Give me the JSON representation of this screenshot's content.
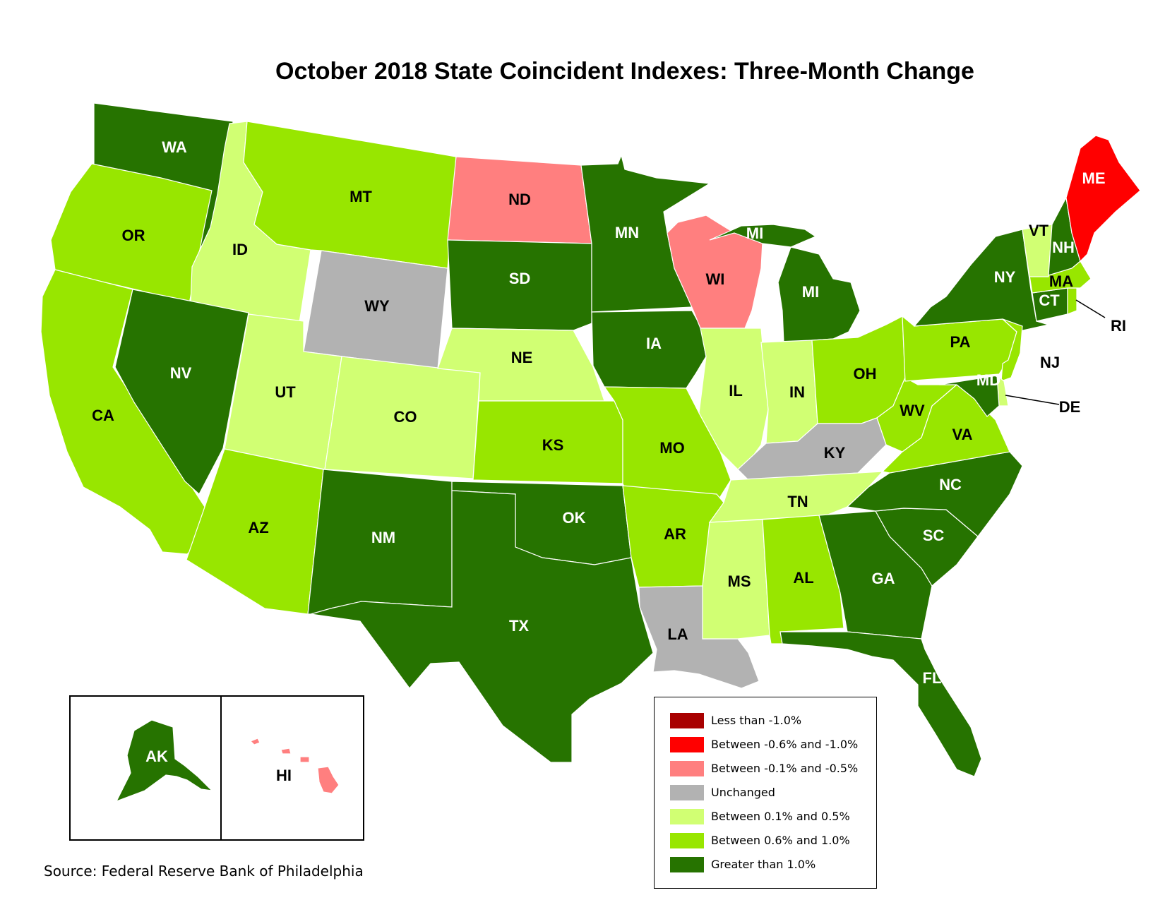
{
  "title": "October 2018 State Coincident Indexes: Three-Month Change",
  "source": "Source: Federal Reserve Bank of Philadelphia",
  "colors": {
    "less_than_neg1": "#a80000",
    "neg06_to_neg1": "#ff0000",
    "neg01_to_neg05": "#ff7f7f",
    "unchanged": "#b2b2b2",
    "pos01_to_05": "#d1ff73",
    "pos06_to_1": "#98e600",
    "greater_than_1": "#267300"
  },
  "legend": [
    {
      "label": "Less than -1.0%",
      "category": "less_than_neg1"
    },
    {
      "label": "Between -0.6% and -1.0%",
      "category": "neg06_to_neg1"
    },
    {
      "label": "Between -0.1% and -0.5%",
      "category": "neg01_to_neg05"
    },
    {
      "label": "Unchanged",
      "category": "unchanged"
    },
    {
      "label": "Between 0.1% and 0.5%",
      "category": "pos01_to_05"
    },
    {
      "label": "Between 0.6% and 1.0%",
      "category": "pos06_to_1"
    },
    {
      "label": "Greater than 1.0%",
      "category": "greater_than_1"
    }
  ],
  "states": [
    {
      "abbr": "WA",
      "category": "greater_than_1"
    },
    {
      "abbr": "OR",
      "category": "pos06_to_1"
    },
    {
      "abbr": "CA",
      "category": "pos06_to_1"
    },
    {
      "abbr": "ID",
      "category": "pos01_to_05"
    },
    {
      "abbr": "NV",
      "category": "greater_than_1"
    },
    {
      "abbr": "MT",
      "category": "pos06_to_1"
    },
    {
      "abbr": "WY",
      "category": "unchanged"
    },
    {
      "abbr": "UT",
      "category": "pos01_to_05"
    },
    {
      "abbr": "CO",
      "category": "pos01_to_05"
    },
    {
      "abbr": "AZ",
      "category": "pos06_to_1"
    },
    {
      "abbr": "NM",
      "category": "greater_than_1"
    },
    {
      "abbr": "ND",
      "category": "neg01_to_neg05"
    },
    {
      "abbr": "SD",
      "category": "greater_than_1"
    },
    {
      "abbr": "NE",
      "category": "pos01_to_05"
    },
    {
      "abbr": "KS",
      "category": "pos06_to_1"
    },
    {
      "abbr": "OK",
      "category": "greater_than_1"
    },
    {
      "abbr": "TX",
      "category": "greater_than_1"
    },
    {
      "abbr": "MN",
      "category": "greater_than_1"
    },
    {
      "abbr": "IA",
      "category": "greater_than_1"
    },
    {
      "abbr": "MO",
      "category": "pos06_to_1"
    },
    {
      "abbr": "AR",
      "category": "pos06_to_1"
    },
    {
      "abbr": "LA",
      "category": "unchanged"
    },
    {
      "abbr": "WI",
      "category": "neg01_to_neg05"
    },
    {
      "abbr": "IL",
      "category": "pos01_to_05"
    },
    {
      "abbr": "MI",
      "category": "greater_than_1"
    },
    {
      "abbr": "IN",
      "category": "pos01_to_05"
    },
    {
      "abbr": "OH",
      "category": "pos06_to_1"
    },
    {
      "abbr": "KY",
      "category": "unchanged"
    },
    {
      "abbr": "TN",
      "category": "pos01_to_05"
    },
    {
      "abbr": "MS",
      "category": "pos01_to_05"
    },
    {
      "abbr": "AL",
      "category": "pos06_to_1"
    },
    {
      "abbr": "GA",
      "category": "greater_than_1"
    },
    {
      "abbr": "FL",
      "category": "greater_than_1"
    },
    {
      "abbr": "SC",
      "category": "greater_than_1"
    },
    {
      "abbr": "NC",
      "category": "greater_than_1"
    },
    {
      "abbr": "VA",
      "category": "pos06_to_1"
    },
    {
      "abbr": "WV",
      "category": "pos06_to_1"
    },
    {
      "abbr": "PA",
      "category": "pos06_to_1"
    },
    {
      "abbr": "NY",
      "category": "greater_than_1"
    },
    {
      "abbr": "NJ",
      "category": "pos06_to_1"
    },
    {
      "abbr": "DE",
      "category": "pos01_to_05"
    },
    {
      "abbr": "MD",
      "category": "greater_than_1"
    },
    {
      "abbr": "CT",
      "category": "greater_than_1"
    },
    {
      "abbr": "RI",
      "category": "pos06_to_1"
    },
    {
      "abbr": "MA",
      "category": "pos06_to_1"
    },
    {
      "abbr": "VT",
      "category": "pos01_to_05"
    },
    {
      "abbr": "NH",
      "category": "greater_than_1"
    },
    {
      "abbr": "ME",
      "category": "neg06_to_neg1"
    },
    {
      "abbr": "AK",
      "category": "greater_than_1"
    },
    {
      "abbr": "HI",
      "category": "neg01_to_neg05"
    }
  ],
  "labels": {
    "WA": "WA",
    "OR": "OR",
    "CA": "CA",
    "ID": "ID",
    "NV": "NV",
    "MT": "MT",
    "WY": "WY",
    "UT": "UT",
    "CO": "CO",
    "AZ": "AZ",
    "NM": "NM",
    "ND": "ND",
    "SD": "SD",
    "NE": "NE",
    "KS": "KS",
    "OK": "OK",
    "TX": "TX",
    "MN": "MN",
    "IA": "IA",
    "MO": "MO",
    "AR": "AR",
    "LA": "LA",
    "WI": "WI",
    "IL": "IL",
    "MI_UP": "MI",
    "MI": "MI",
    "IN": "IN",
    "OH": "OH",
    "KY": "KY",
    "TN": "TN",
    "MS": "MS",
    "AL": "AL",
    "GA": "GA",
    "FL": "FL",
    "SC": "SC",
    "NC": "NC",
    "VA": "VA",
    "WV": "WV",
    "PA": "PA",
    "NY": "NY",
    "NJ": "NJ",
    "DE": "DE",
    "MD": "MD",
    "CT": "CT",
    "RI": "RI",
    "MA": "MA",
    "VT": "VT",
    "NH": "NH",
    "ME": "ME",
    "AK": "AK",
    "HI": "HI"
  }
}
